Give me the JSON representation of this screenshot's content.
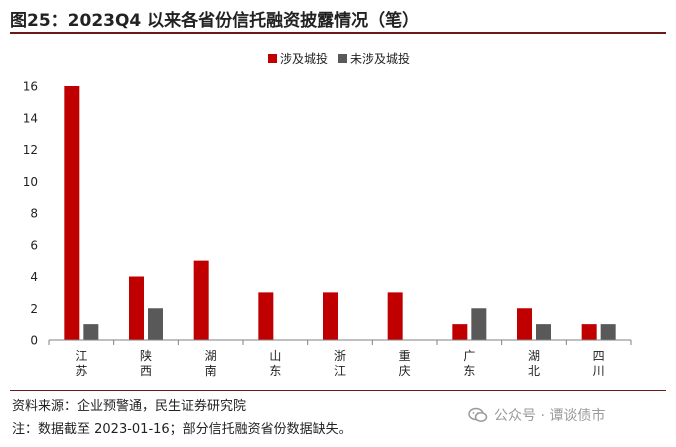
{
  "figure": {
    "title": "图25：2023Q4 以来各省份信托融资披露情况（笔）",
    "source": "资料来源：企业预警通，民生证券研究院",
    "note": "注：数据截至 2023-01-16；部分信托融资省份数据缺失。",
    "watermark": "公众号 · 谭谈债市"
  },
  "colors": {
    "series_1": "#c00000",
    "series_2": "#595959",
    "axis": "#808080",
    "accent": "#6b1a1a"
  },
  "chart_data": {
    "type": "bar",
    "categories": [
      "江苏",
      "陕西",
      "湖南",
      "山东",
      "浙江",
      "重庆",
      "广东",
      "湖北",
      "四川"
    ],
    "category_lines": [
      [
        "江",
        "苏"
      ],
      [
        "陕",
        "西"
      ],
      [
        "湖",
        "南"
      ],
      [
        "山",
        "东"
      ],
      [
        "浙",
        "江"
      ],
      [
        "重",
        "庆"
      ],
      [
        "广",
        "东"
      ],
      [
        "湖",
        "北"
      ],
      [
        "四",
        "川"
      ]
    ],
    "series": [
      {
        "name": "涉及城投",
        "values": [
          16,
          4,
          5,
          3,
          3,
          3,
          1,
          2,
          1
        ]
      },
      {
        "name": "未涉及城投",
        "values": [
          1,
          2,
          0,
          0,
          0,
          0,
          2,
          1,
          1
        ]
      }
    ],
    "ylim": [
      0,
      16
    ],
    "yticks": [
      0,
      2,
      4,
      6,
      8,
      10,
      12,
      14,
      16
    ],
    "legend_position": "top-center",
    "grid": false
  }
}
